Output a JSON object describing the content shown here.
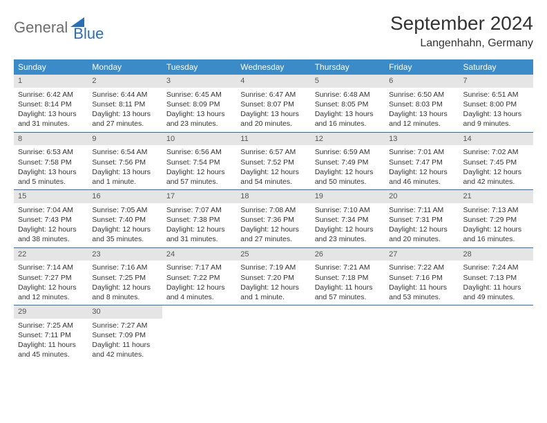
{
  "brand": {
    "text_gray": "General",
    "text_blue": "Blue"
  },
  "title": "September 2024",
  "location": "Langenhahn, Germany",
  "colors": {
    "header_bg": "#3b8bc9",
    "header_text": "#ffffff",
    "row_border": "#2a6fb5",
    "daynum_bg": "#e5e5e5",
    "logo_gray": "#6d6d6d",
    "logo_blue": "#2a6fb5"
  },
  "day_headers": [
    "Sunday",
    "Monday",
    "Tuesday",
    "Wednesday",
    "Thursday",
    "Friday",
    "Saturday"
  ],
  "weeks": [
    [
      {
        "n": "1",
        "sunrise": "Sunrise: 6:42 AM",
        "sunset": "Sunset: 8:14 PM",
        "daylight": "Daylight: 13 hours and 31 minutes."
      },
      {
        "n": "2",
        "sunrise": "Sunrise: 6:44 AM",
        "sunset": "Sunset: 8:11 PM",
        "daylight": "Daylight: 13 hours and 27 minutes."
      },
      {
        "n": "3",
        "sunrise": "Sunrise: 6:45 AM",
        "sunset": "Sunset: 8:09 PM",
        "daylight": "Daylight: 13 hours and 23 minutes."
      },
      {
        "n": "4",
        "sunrise": "Sunrise: 6:47 AM",
        "sunset": "Sunset: 8:07 PM",
        "daylight": "Daylight: 13 hours and 20 minutes."
      },
      {
        "n": "5",
        "sunrise": "Sunrise: 6:48 AM",
        "sunset": "Sunset: 8:05 PM",
        "daylight": "Daylight: 13 hours and 16 minutes."
      },
      {
        "n": "6",
        "sunrise": "Sunrise: 6:50 AM",
        "sunset": "Sunset: 8:03 PM",
        "daylight": "Daylight: 13 hours and 12 minutes."
      },
      {
        "n": "7",
        "sunrise": "Sunrise: 6:51 AM",
        "sunset": "Sunset: 8:00 PM",
        "daylight": "Daylight: 13 hours and 9 minutes."
      }
    ],
    [
      {
        "n": "8",
        "sunrise": "Sunrise: 6:53 AM",
        "sunset": "Sunset: 7:58 PM",
        "daylight": "Daylight: 13 hours and 5 minutes."
      },
      {
        "n": "9",
        "sunrise": "Sunrise: 6:54 AM",
        "sunset": "Sunset: 7:56 PM",
        "daylight": "Daylight: 13 hours and 1 minute."
      },
      {
        "n": "10",
        "sunrise": "Sunrise: 6:56 AM",
        "sunset": "Sunset: 7:54 PM",
        "daylight": "Daylight: 12 hours and 57 minutes."
      },
      {
        "n": "11",
        "sunrise": "Sunrise: 6:57 AM",
        "sunset": "Sunset: 7:52 PM",
        "daylight": "Daylight: 12 hours and 54 minutes."
      },
      {
        "n": "12",
        "sunrise": "Sunrise: 6:59 AM",
        "sunset": "Sunset: 7:49 PM",
        "daylight": "Daylight: 12 hours and 50 minutes."
      },
      {
        "n": "13",
        "sunrise": "Sunrise: 7:01 AM",
        "sunset": "Sunset: 7:47 PM",
        "daylight": "Daylight: 12 hours and 46 minutes."
      },
      {
        "n": "14",
        "sunrise": "Sunrise: 7:02 AM",
        "sunset": "Sunset: 7:45 PM",
        "daylight": "Daylight: 12 hours and 42 minutes."
      }
    ],
    [
      {
        "n": "15",
        "sunrise": "Sunrise: 7:04 AM",
        "sunset": "Sunset: 7:43 PM",
        "daylight": "Daylight: 12 hours and 38 minutes."
      },
      {
        "n": "16",
        "sunrise": "Sunrise: 7:05 AM",
        "sunset": "Sunset: 7:40 PM",
        "daylight": "Daylight: 12 hours and 35 minutes."
      },
      {
        "n": "17",
        "sunrise": "Sunrise: 7:07 AM",
        "sunset": "Sunset: 7:38 PM",
        "daylight": "Daylight: 12 hours and 31 minutes."
      },
      {
        "n": "18",
        "sunrise": "Sunrise: 7:08 AM",
        "sunset": "Sunset: 7:36 PM",
        "daylight": "Daylight: 12 hours and 27 minutes."
      },
      {
        "n": "19",
        "sunrise": "Sunrise: 7:10 AM",
        "sunset": "Sunset: 7:34 PM",
        "daylight": "Daylight: 12 hours and 23 minutes."
      },
      {
        "n": "20",
        "sunrise": "Sunrise: 7:11 AM",
        "sunset": "Sunset: 7:31 PM",
        "daylight": "Daylight: 12 hours and 20 minutes."
      },
      {
        "n": "21",
        "sunrise": "Sunrise: 7:13 AM",
        "sunset": "Sunset: 7:29 PM",
        "daylight": "Daylight: 12 hours and 16 minutes."
      }
    ],
    [
      {
        "n": "22",
        "sunrise": "Sunrise: 7:14 AM",
        "sunset": "Sunset: 7:27 PM",
        "daylight": "Daylight: 12 hours and 12 minutes."
      },
      {
        "n": "23",
        "sunrise": "Sunrise: 7:16 AM",
        "sunset": "Sunset: 7:25 PM",
        "daylight": "Daylight: 12 hours and 8 minutes."
      },
      {
        "n": "24",
        "sunrise": "Sunrise: 7:17 AM",
        "sunset": "Sunset: 7:22 PM",
        "daylight": "Daylight: 12 hours and 4 minutes."
      },
      {
        "n": "25",
        "sunrise": "Sunrise: 7:19 AM",
        "sunset": "Sunset: 7:20 PM",
        "daylight": "Daylight: 12 hours and 1 minute."
      },
      {
        "n": "26",
        "sunrise": "Sunrise: 7:21 AM",
        "sunset": "Sunset: 7:18 PM",
        "daylight": "Daylight: 11 hours and 57 minutes."
      },
      {
        "n": "27",
        "sunrise": "Sunrise: 7:22 AM",
        "sunset": "Sunset: 7:16 PM",
        "daylight": "Daylight: 11 hours and 53 minutes."
      },
      {
        "n": "28",
        "sunrise": "Sunrise: 7:24 AM",
        "sunset": "Sunset: 7:13 PM",
        "daylight": "Daylight: 11 hours and 49 minutes."
      }
    ],
    [
      {
        "n": "29",
        "sunrise": "Sunrise: 7:25 AM",
        "sunset": "Sunset: 7:11 PM",
        "daylight": "Daylight: 11 hours and 45 minutes."
      },
      {
        "n": "30",
        "sunrise": "Sunrise: 7:27 AM",
        "sunset": "Sunset: 7:09 PM",
        "daylight": "Daylight: 11 hours and 42 minutes."
      },
      {
        "empty": true
      },
      {
        "empty": true
      },
      {
        "empty": true
      },
      {
        "empty": true
      },
      {
        "empty": true
      }
    ]
  ]
}
